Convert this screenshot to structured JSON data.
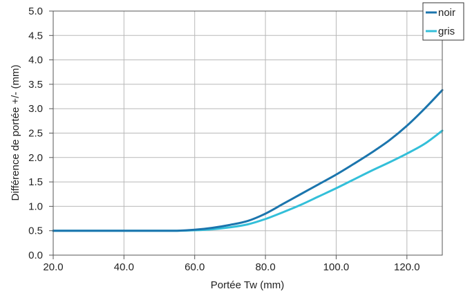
{
  "chart_data": {
    "type": "line",
    "title": "",
    "xlabel": "Portée Tw (mm)",
    "ylabel": "Différence de portée +/- (mm)",
    "xlim": [
      20,
      130
    ],
    "ylim": [
      0,
      5
    ],
    "grid": true,
    "legend_position": "top-right",
    "x_ticks": [
      "20.0",
      "40.0",
      "60.0",
      "80.0",
      "100.0",
      "120.0"
    ],
    "x_tick_values": [
      20,
      40,
      60,
      80,
      100,
      120
    ],
    "y_ticks": [
      "0.0",
      "0.5",
      "1.0",
      "1.5",
      "2.0",
      "2.5",
      "3.0",
      "3.5",
      "4.0",
      "4.5",
      "5.0"
    ],
    "y_tick_values": [
      0,
      0.5,
      1,
      1.5,
      2,
      2.5,
      3,
      3.5,
      4,
      4.5,
      5
    ],
    "series": [
      {
        "name": "noir",
        "color": "#1b75ad",
        "x": [
          20,
          30,
          40,
          50,
          55,
          60,
          65,
          70,
          75,
          80,
          85,
          90,
          95,
          100,
          105,
          110,
          115,
          120,
          125,
          130
        ],
        "y": [
          0.5,
          0.5,
          0.5,
          0.5,
          0.5,
          0.52,
          0.56,
          0.62,
          0.7,
          0.85,
          1.05,
          1.25,
          1.45,
          1.65,
          1.87,
          2.1,
          2.35,
          2.65,
          3.0,
          3.38
        ]
      },
      {
        "name": "gris",
        "color": "#33bfd9",
        "x": [
          20,
          30,
          40,
          50,
          55,
          60,
          65,
          70,
          75,
          80,
          85,
          90,
          95,
          100,
          105,
          110,
          115,
          120,
          125,
          130
        ],
        "y": [
          0.5,
          0.5,
          0.5,
          0.5,
          0.5,
          0.51,
          0.53,
          0.57,
          0.63,
          0.74,
          0.88,
          1.03,
          1.2,
          1.37,
          1.55,
          1.73,
          1.9,
          2.08,
          2.28,
          2.55
        ]
      }
    ]
  }
}
